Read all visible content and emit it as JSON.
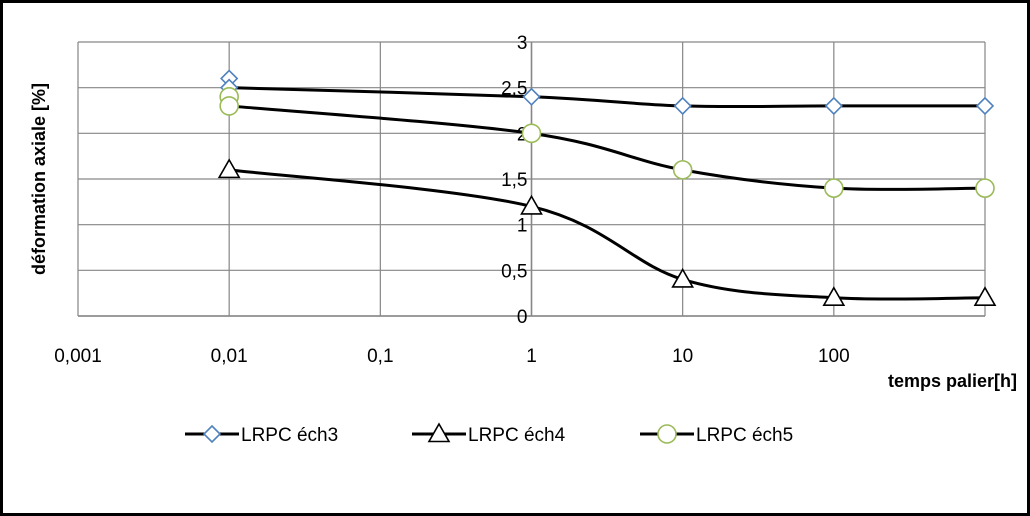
{
  "chart_data": {
    "type": "line",
    "xlabel": "temps palier[h]",
    "ylabel": "déformation axiale [%]",
    "x_scale": "log",
    "xlim": [
      0.001,
      1000
    ],
    "ylim": [
      0,
      3
    ],
    "grid": true,
    "legend_position": "bottom",
    "x_tick_labels": [
      "0,001",
      "0,01",
      "0,1",
      "1",
      "10",
      "100"
    ],
    "y_tick_labels": [
      "0",
      "0,5",
      "1",
      "1,5",
      "2",
      "2,5",
      "3"
    ],
    "series": [
      {
        "name": "LRPC éch3",
        "marker": "diamond",
        "marker_color": "#4f81bd",
        "x": [
          0.01,
          0.01,
          1,
          10,
          100,
          1000
        ],
        "y": [
          2.6,
          2.5,
          2.4,
          2.3,
          2.3,
          2.3
        ]
      },
      {
        "name": "LRPC éch4",
        "marker": "triangle",
        "marker_color": "#000000",
        "x": [
          0.01,
          1,
          10,
          100,
          1000
        ],
        "y": [
          1.6,
          1.2,
          0.4,
          0.2,
          0.2
        ]
      },
      {
        "name": "LRPC éch5",
        "marker": "circle",
        "marker_color": "#9bbb59",
        "x": [
          0.01,
          0.01,
          1,
          10,
          100,
          1000
        ],
        "y": [
          2.4,
          2.3,
          2.0,
          1.6,
          1.4,
          1.4
        ]
      }
    ]
  }
}
